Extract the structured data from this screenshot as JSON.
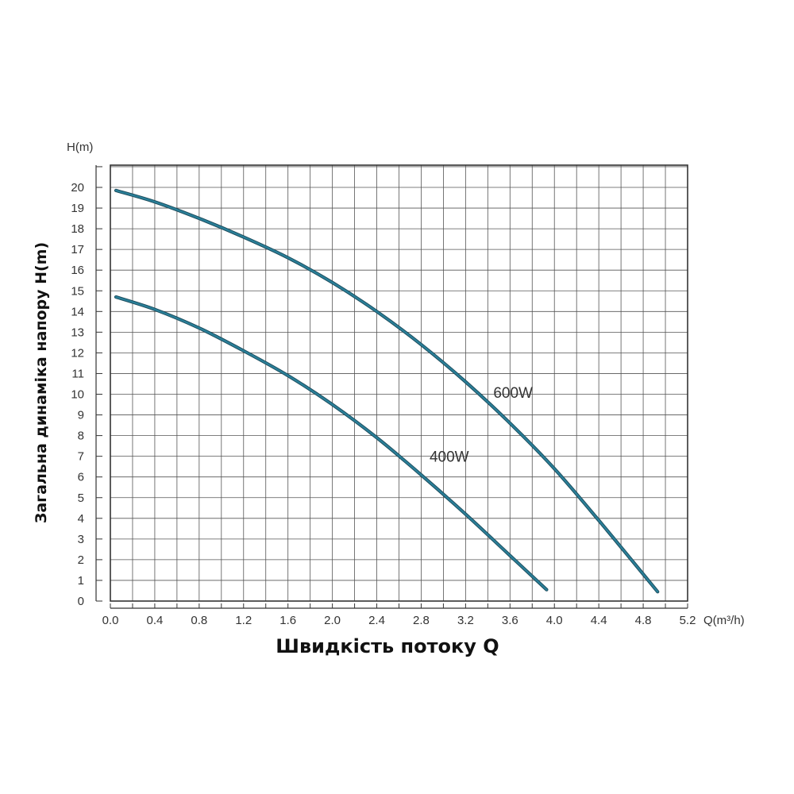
{
  "chart_data": {
    "type": "line",
    "title": "",
    "xlabel": "Швидкість потоку Q",
    "ylabel": "Загальна динаміка напору H(m)",
    "x_unit": "Q(m³/h)",
    "y_unit": "H(m)",
    "xlim": [
      0,
      5.2
    ],
    "ylim": [
      0,
      21
    ],
    "x_ticks": [
      "0.0",
      "0.4",
      "0.8",
      "1.2",
      "1.6",
      "2.0",
      "2.4",
      "2.8",
      "3.2",
      "3.6",
      "4.0",
      "4.4",
      "4.8",
      "5.2"
    ],
    "y_ticks": [
      "0",
      "1",
      "2",
      "3",
      "4",
      "5",
      "6",
      "7",
      "8",
      "9",
      "10",
      "11",
      "12",
      "13",
      "14",
      "15",
      "16",
      "17",
      "18",
      "19",
      "20"
    ],
    "grid": true,
    "series": [
      {
        "name": "600W",
        "color": "#2a7f98",
        "x": [
          0.05,
          0.4,
          0.8,
          1.2,
          1.6,
          2.0,
          2.4,
          2.8,
          3.2,
          3.6,
          4.0,
          4.4,
          4.8,
          4.93
        ],
        "y": [
          19.85,
          19.3,
          18.5,
          17.6,
          16.6,
          15.4,
          14.0,
          12.4,
          10.6,
          8.6,
          6.4,
          3.9,
          1.3,
          0.45
        ]
      },
      {
        "name": "400W",
        "color": "#2a7f98",
        "x": [
          0.05,
          0.4,
          0.8,
          1.2,
          1.6,
          2.0,
          2.4,
          2.8,
          3.2,
          3.6,
          3.93
        ],
        "y": [
          14.7,
          14.1,
          13.2,
          12.1,
          10.9,
          9.5,
          7.9,
          6.1,
          4.2,
          2.2,
          0.55
        ]
      }
    ]
  }
}
